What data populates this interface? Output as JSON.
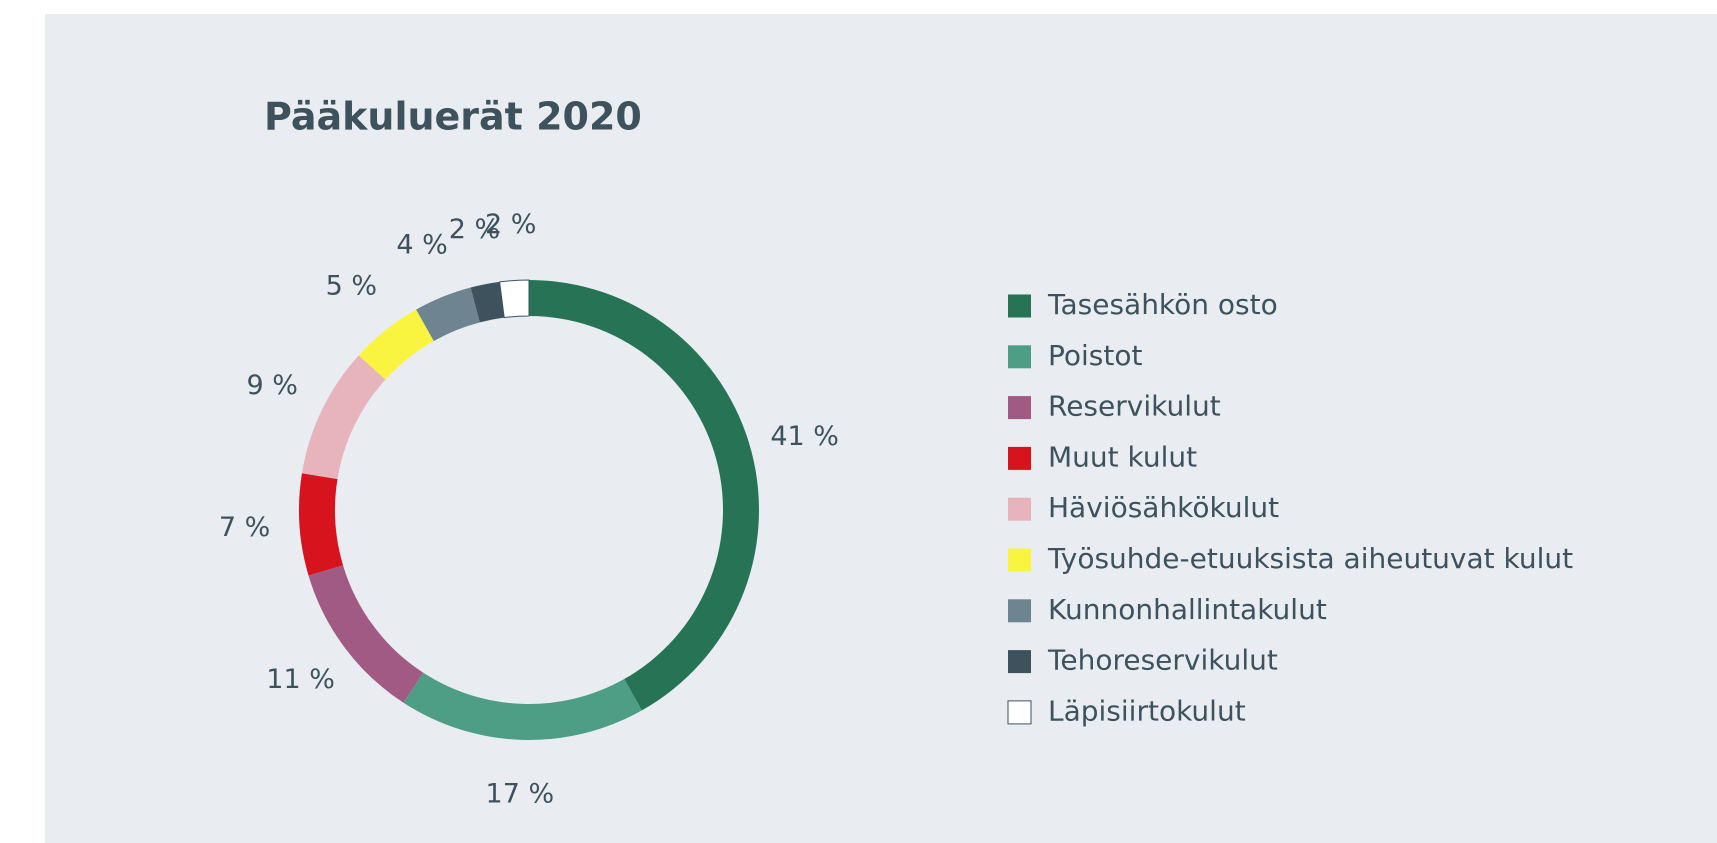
{
  "chart_data": {
    "type": "pie",
    "title": "Pääkuluerät 2020",
    "categories": [
      "Tasesähkön osto",
      "Poistot",
      "Reservikulut",
      "Muut kulut",
      "Häviösähkökulut",
      "Työsuhde-etuuksista aiheutuvat kulut",
      "Kunnonhallintakulut",
      "Tehoreservikulut",
      "Läpisiirtokulut"
    ],
    "values": [
      41,
      17,
      11,
      7,
      9,
      5,
      4,
      2,
      2
    ],
    "value_labels": [
      "41 %",
      "17 %",
      "11 %",
      "7 %",
      "9 %",
      "5 %",
      "4 %",
      "2 %",
      "2 %"
    ],
    "colors": [
      "#267355",
      "#4e9e86",
      "#a05a84",
      "#d7141e",
      "#e8b4bc",
      "#f9f43f",
      "#6e8490",
      "#3e525d",
      "#ffffff"
    ],
    "donut": true,
    "legend": "right"
  }
}
